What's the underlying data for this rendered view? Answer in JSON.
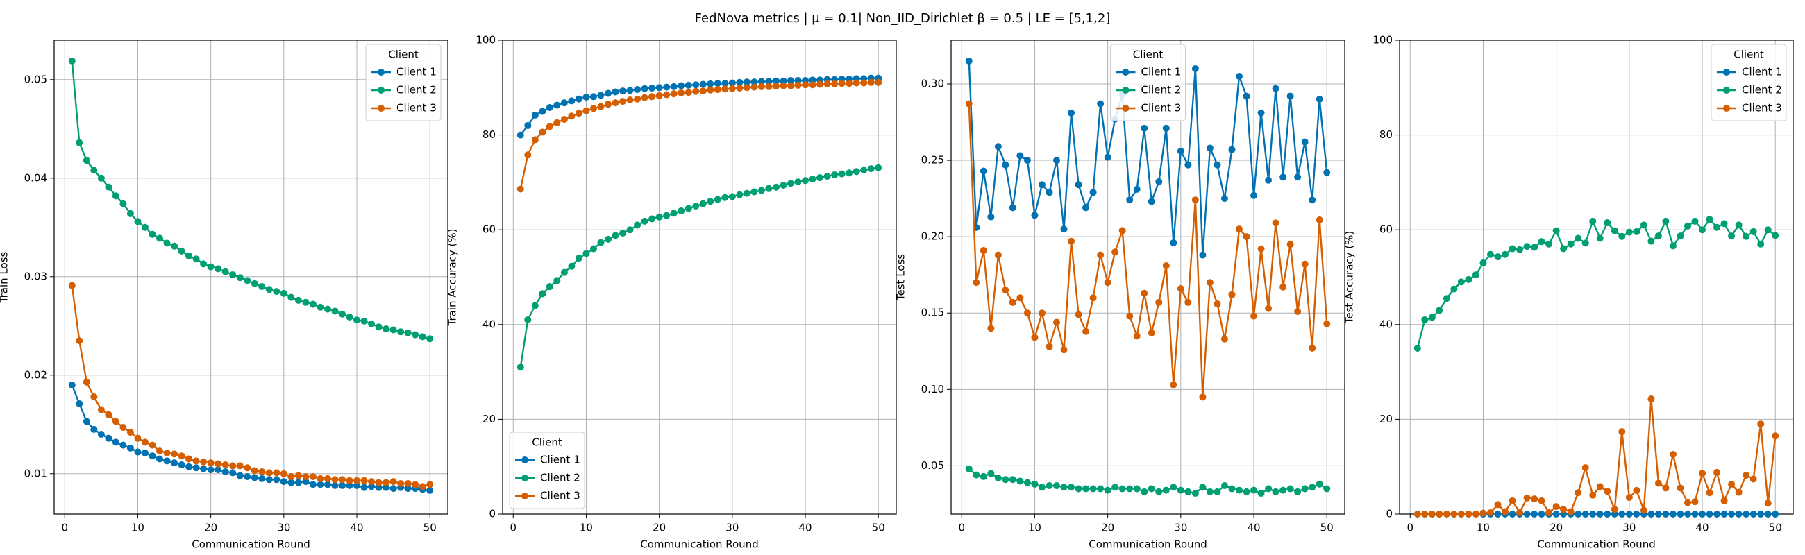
{
  "title": "FedNova metrics | μ = 0.1| Non_IID_Dirichlet β = 0.5 | LE = [5,1,2]",
  "chart_data": [
    {
      "type": "line",
      "xlabel": "Communication Round",
      "ylabel": "Train Loss",
      "grid": true,
      "legend": "upper right",
      "legend_title": "Client",
      "xlim": [
        -1.45,
        52.45
      ],
      "xticks": [
        0,
        10,
        20,
        30,
        40,
        50
      ],
      "ylim": [
        0.0059,
        0.054
      ],
      "yticks": [
        0.01,
        0.02,
        0.03,
        0.04,
        0.05
      ],
      "x": [
        1,
        2,
        3,
        4,
        5,
        6,
        7,
        8,
        9,
        10,
        11,
        12,
        13,
        14,
        15,
        16,
        17,
        18,
        19,
        20,
        21,
        22,
        23,
        24,
        25,
        26,
        27,
        28,
        29,
        30,
        31,
        32,
        33,
        34,
        35,
        36,
        37,
        38,
        39,
        40,
        41,
        42,
        43,
        44,
        45,
        46,
        47,
        48,
        49,
        50
      ],
      "series": [
        {
          "name": "Client 1",
          "color": "#0072B2",
          "values": [
            0.019,
            0.0171,
            0.0153,
            0.0145,
            0.014,
            0.0136,
            0.0132,
            0.0129,
            0.0126,
            0.0122,
            0.0121,
            0.0118,
            0.0115,
            0.0113,
            0.0111,
            0.0109,
            0.0107,
            0.0106,
            0.0105,
            0.0104,
            0.0104,
            0.0102,
            0.0101,
            0.0098,
            0.0097,
            0.0096,
            0.0095,
            0.0094,
            0.0094,
            0.0092,
            0.0091,
            0.0091,
            0.0092,
            0.0089,
            0.0089,
            0.0089,
            0.0088,
            0.0088,
            0.0088,
            0.0088,
            0.0086,
            0.0087,
            0.0086,
            0.0086,
            0.0085,
            0.0086,
            0.0085,
            0.0085,
            0.0084,
            0.0083
          ]
        },
        {
          "name": "Client 2",
          "color": "#009E73",
          "values": [
            0.0519,
            0.0436,
            0.0418,
            0.0408,
            0.04,
            0.0391,
            0.0382,
            0.0374,
            0.0364,
            0.0356,
            0.035,
            0.0343,
            0.0339,
            0.0334,
            0.0331,
            0.0326,
            0.0321,
            0.0318,
            0.0313,
            0.031,
            0.0308,
            0.0305,
            0.0302,
            0.0299,
            0.0296,
            0.0293,
            0.029,
            0.0287,
            0.0285,
            0.0283,
            0.0279,
            0.0276,
            0.0274,
            0.0272,
            0.0269,
            0.0267,
            0.0265,
            0.0262,
            0.0259,
            0.0256,
            0.0255,
            0.0252,
            0.0249,
            0.0247,
            0.0246,
            0.0244,
            0.0243,
            0.0241,
            0.0239,
            0.0237
          ]
        },
        {
          "name": "Client 3",
          "color": "#D55E00",
          "values": [
            0.0291,
            0.0235,
            0.0193,
            0.0178,
            0.0165,
            0.016,
            0.0153,
            0.0147,
            0.0142,
            0.0136,
            0.0132,
            0.0129,
            0.0123,
            0.0121,
            0.012,
            0.0118,
            0.0115,
            0.0113,
            0.0112,
            0.0111,
            0.011,
            0.0109,
            0.0108,
            0.0108,
            0.0106,
            0.0103,
            0.0102,
            0.0101,
            0.0101,
            0.01,
            0.0097,
            0.0098,
            0.0097,
            0.0097,
            0.0095,
            0.0095,
            0.0094,
            0.0094,
            0.0093,
            0.0093,
            0.0093,
            0.0092,
            0.0091,
            0.0091,
            0.0092,
            0.009,
            0.009,
            0.0089,
            0.0087,
            0.0089
          ]
        }
      ]
    },
    {
      "type": "line",
      "xlabel": "Communication Round",
      "ylabel": "Train Accuracy (%)",
      "grid": true,
      "legend": "lower left",
      "legend_title": "Client",
      "xlim": [
        -1.45,
        52.45
      ],
      "xticks": [
        0,
        10,
        20,
        30,
        40,
        50
      ],
      "ylim": [
        0,
        100
      ],
      "yticks": [
        0,
        20,
        40,
        60,
        80,
        100
      ],
      "x": [
        1,
        2,
        3,
        4,
        5,
        6,
        7,
        8,
        9,
        10,
        11,
        12,
        13,
        14,
        15,
        16,
        17,
        18,
        19,
        20,
        21,
        22,
        23,
        24,
        25,
        26,
        27,
        28,
        29,
        30,
        31,
        32,
        33,
        34,
        35,
        36,
        37,
        38,
        39,
        40,
        41,
        42,
        43,
        44,
        45,
        46,
        47,
        48,
        49,
        50
      ],
      "series": [
        {
          "name": "Client 1",
          "color": "#0072B2",
          "values": [
            80,
            82,
            84.2,
            85,
            85.8,
            86.3,
            86.8,
            87.2,
            87.6,
            88,
            88.1,
            88.4,
            88.8,
            89.1,
            89.3,
            89.4,
            89.6,
            89.8,
            89.9,
            90,
            90.1,
            90.2,
            90.4,
            90.5,
            90.6,
            90.7,
            90.8,
            90.9,
            90.9,
            91,
            91.1,
            91.2,
            91.2,
            91.3,
            91.3,
            91.4,
            91.4,
            91.5,
            91.5,
            91.5,
            91.6,
            91.6,
            91.7,
            91.7,
            91.8,
            91.8,
            91.9,
            91.9,
            92,
            92
          ]
        },
        {
          "name": "Client 2",
          "color": "#009E73",
          "values": [
            31,
            41,
            44,
            46.5,
            48,
            49.3,
            51,
            52.3,
            54,
            55,
            56,
            57.3,
            58,
            58.8,
            59.3,
            60,
            61,
            61.8,
            62.3,
            62.7,
            63,
            63.5,
            64,
            64.5,
            65,
            65.5,
            66,
            66.4,
            66.8,
            67,
            67.4,
            67.7,
            68,
            68.3,
            68.7,
            69,
            69.4,
            69.8,
            70.1,
            70.4,
            70.7,
            71,
            71.3,
            71.6,
            71.8,
            72,
            72.3,
            72.6,
            72.9,
            73.1
          ]
        },
        {
          "name": "Client 3",
          "color": "#D55E00",
          "values": [
            68.6,
            75.8,
            79,
            80.6,
            81.8,
            82.6,
            83.3,
            84,
            84.6,
            85.1,
            85.6,
            86,
            86.5,
            86.8,
            87.1,
            87.4,
            87.6,
            87.9,
            88.1,
            88.3,
            88.5,
            88.7,
            88.9,
            89,
            89.2,
            89.3,
            89.5,
            89.6,
            89.7,
            89.8,
            89.9,
            90,
            90.1,
            90.2,
            90.2,
            90.3,
            90.4,
            90.4,
            90.5,
            90.6,
            90.6,
            90.7,
            90.8,
            90.8,
            90.9,
            90.9,
            91,
            91,
            91.1,
            91.1
          ]
        }
      ]
    },
    {
      "type": "line",
      "xlabel": "Communication Round",
      "ylabel": "Test Loss",
      "grid": true,
      "legend": "upper center",
      "legend_title": "Client",
      "xlim": [
        -1.45,
        52.45
      ],
      "xticks": [
        0,
        10,
        20,
        30,
        40,
        50
      ],
      "ylim": [
        0.0184,
        0.3286
      ],
      "yticks": [
        0.05,
        {
          "value": 0.1,
          "label": "0.10"
        },
        0.15,
        {
          "value": 0.2,
          "label": "0.20"
        },
        0.25,
        {
          "value": 0.3,
          "label": "0.30"
        }
      ],
      "x": [
        1,
        2,
        3,
        4,
        5,
        6,
        7,
        8,
        9,
        10,
        11,
        12,
        13,
        14,
        15,
        16,
        17,
        18,
        19,
        20,
        21,
        22,
        23,
        24,
        25,
        26,
        27,
        28,
        29,
        30,
        31,
        32,
        33,
        34,
        35,
        36,
        37,
        38,
        39,
        40,
        41,
        42,
        43,
        44,
        45,
        46,
        47,
        48,
        49,
        50
      ],
      "series": [
        {
          "name": "Client 1",
          "color": "#0072B2",
          "values": [
            0.315,
            0.206,
            0.243,
            0.213,
            0.259,
            0.247,
            0.219,
            0.253,
            0.25,
            0.214,
            0.234,
            0.229,
            0.25,
            0.205,
            0.281,
            0.234,
            0.219,
            0.229,
            0.287,
            0.252,
            0.277,
            0.293,
            0.224,
            0.231,
            0.271,
            0.223,
            0.236,
            0.271,
            0.196,
            0.256,
            0.247,
            0.31,
            0.188,
            0.258,
            0.247,
            0.225,
            0.257,
            0.305,
            0.292,
            0.227,
            0.281,
            0.237,
            0.297,
            0.239,
            0.292,
            0.239,
            0.262,
            0.224,
            0.29,
            0.242
          ]
        },
        {
          "name": "Client 2",
          "color": "#009E73",
          "values": [
            0.048,
            0.044,
            0.043,
            0.045,
            0.042,
            0.041,
            0.041,
            0.04,
            0.039,
            0.038,
            0.036,
            0.037,
            0.037,
            0.036,
            0.036,
            0.035,
            0.035,
            0.035,
            0.035,
            0.034,
            0.036,
            0.035,
            0.035,
            0.035,
            0.033,
            0.035,
            0.033,
            0.034,
            0.036,
            0.034,
            0.033,
            0.032,
            0.036,
            0.033,
            0.033,
            0.037,
            0.035,
            0.034,
            0.033,
            0.034,
            0.032,
            0.035,
            0.033,
            0.034,
            0.035,
            0.033,
            0.035,
            0.036,
            0.038,
            0.035
          ]
        },
        {
          "name": "Client 3",
          "color": "#D55E00",
          "values": [
            0.287,
            0.17,
            0.191,
            0.14,
            0.188,
            0.165,
            0.157,
            0.16,
            0.15,
            0.134,
            0.15,
            0.128,
            0.144,
            0.126,
            0.197,
            0.149,
            0.138,
            0.16,
            0.188,
            0.17,
            0.19,
            0.204,
            0.148,
            0.135,
            0.163,
            0.137,
            0.157,
            0.181,
            0.103,
            0.166,
            0.157,
            0.224,
            0.095,
            0.17,
            0.156,
            0.133,
            0.162,
            0.205,
            0.2,
            0.148,
            0.192,
            0.153,
            0.209,
            0.167,
            0.195,
            0.151,
            0.182,
            0.127,
            0.211,
            0.143
          ]
        }
      ]
    },
    {
      "type": "line",
      "xlabel": "Communication Round",
      "ylabel": "Test Accuracy (%)",
      "grid": true,
      "legend": "upper right",
      "legend_title": "Client",
      "xlim": [
        -1.45,
        52.45
      ],
      "xticks": [
        0,
        10,
        20,
        30,
        40,
        50
      ],
      "ylim": [
        0,
        100
      ],
      "yticks": [
        0,
        20,
        40,
        60,
        80,
        100
      ],
      "x": [
        1,
        2,
        3,
        4,
        5,
        6,
        7,
        8,
        9,
        10,
        11,
        12,
        13,
        14,
        15,
        16,
        17,
        18,
        19,
        20,
        21,
        22,
        23,
        24,
        25,
        26,
        27,
        28,
        29,
        30,
        31,
        32,
        33,
        34,
        35,
        36,
        37,
        38,
        39,
        40,
        41,
        42,
        43,
        44,
        45,
        46,
        47,
        48,
        49,
        50
      ],
      "series": [
        {
          "name": "Client 1",
          "color": "#0072B2",
          "values": [
            0,
            0,
            0,
            0,
            0,
            0,
            0,
            0,
            0,
            0,
            0,
            0,
            0,
            0,
            0,
            0,
            0,
            0,
            0,
            0,
            0,
            0,
            0,
            0,
            0,
            0,
            0,
            0,
            0,
            0,
            0,
            0,
            0,
            0,
            0,
            0,
            0,
            0,
            0,
            0,
            0,
            0,
            0,
            0,
            0,
            0,
            0,
            0,
            0,
            0
          ]
        },
        {
          "name": "Client 2",
          "color": "#009E73",
          "values": [
            35,
            41,
            41.5,
            43,
            45.5,
            47.5,
            49,
            49.5,
            50.5,
            53,
            54.8,
            54.3,
            54.8,
            56,
            55.8,
            56.5,
            56.3,
            57.5,
            57,
            59.8,
            56,
            57,
            58.2,
            57.2,
            61.8,
            58.2,
            61.5,
            59.8,
            58.6,
            59.5,
            59.6,
            61,
            57.6,
            58.7,
            61.8,
            56.6,
            58.7,
            60.8,
            61.8,
            60,
            62.2,
            60.5,
            61.3,
            58.7,
            61,
            58.6,
            59.6,
            57,
            60,
            58.8
          ]
        },
        {
          "name": "Client 3",
          "color": "#D55E00",
          "values": [
            0,
            0,
            0,
            0,
            0,
            0,
            0,
            0,
            0,
            0.2,
            0.3,
            2,
            0.5,
            2.8,
            0.3,
            3.4,
            3.2,
            2.8,
            0.3,
            1.6,
            1,
            0.5,
            4.5,
            9.8,
            4,
            5.8,
            4.8,
            1,
            17.4,
            3.5,
            5,
            0.8,
            24.3,
            6.5,
            5.5,
            12.6,
            5.5,
            2.4,
            2.6,
            8.6,
            4.5,
            8.8,
            2.8,
            6.3,
            4.6,
            8.2,
            7.4,
            19,
            2.3,
            16.5
          ]
        }
      ]
    }
  ]
}
